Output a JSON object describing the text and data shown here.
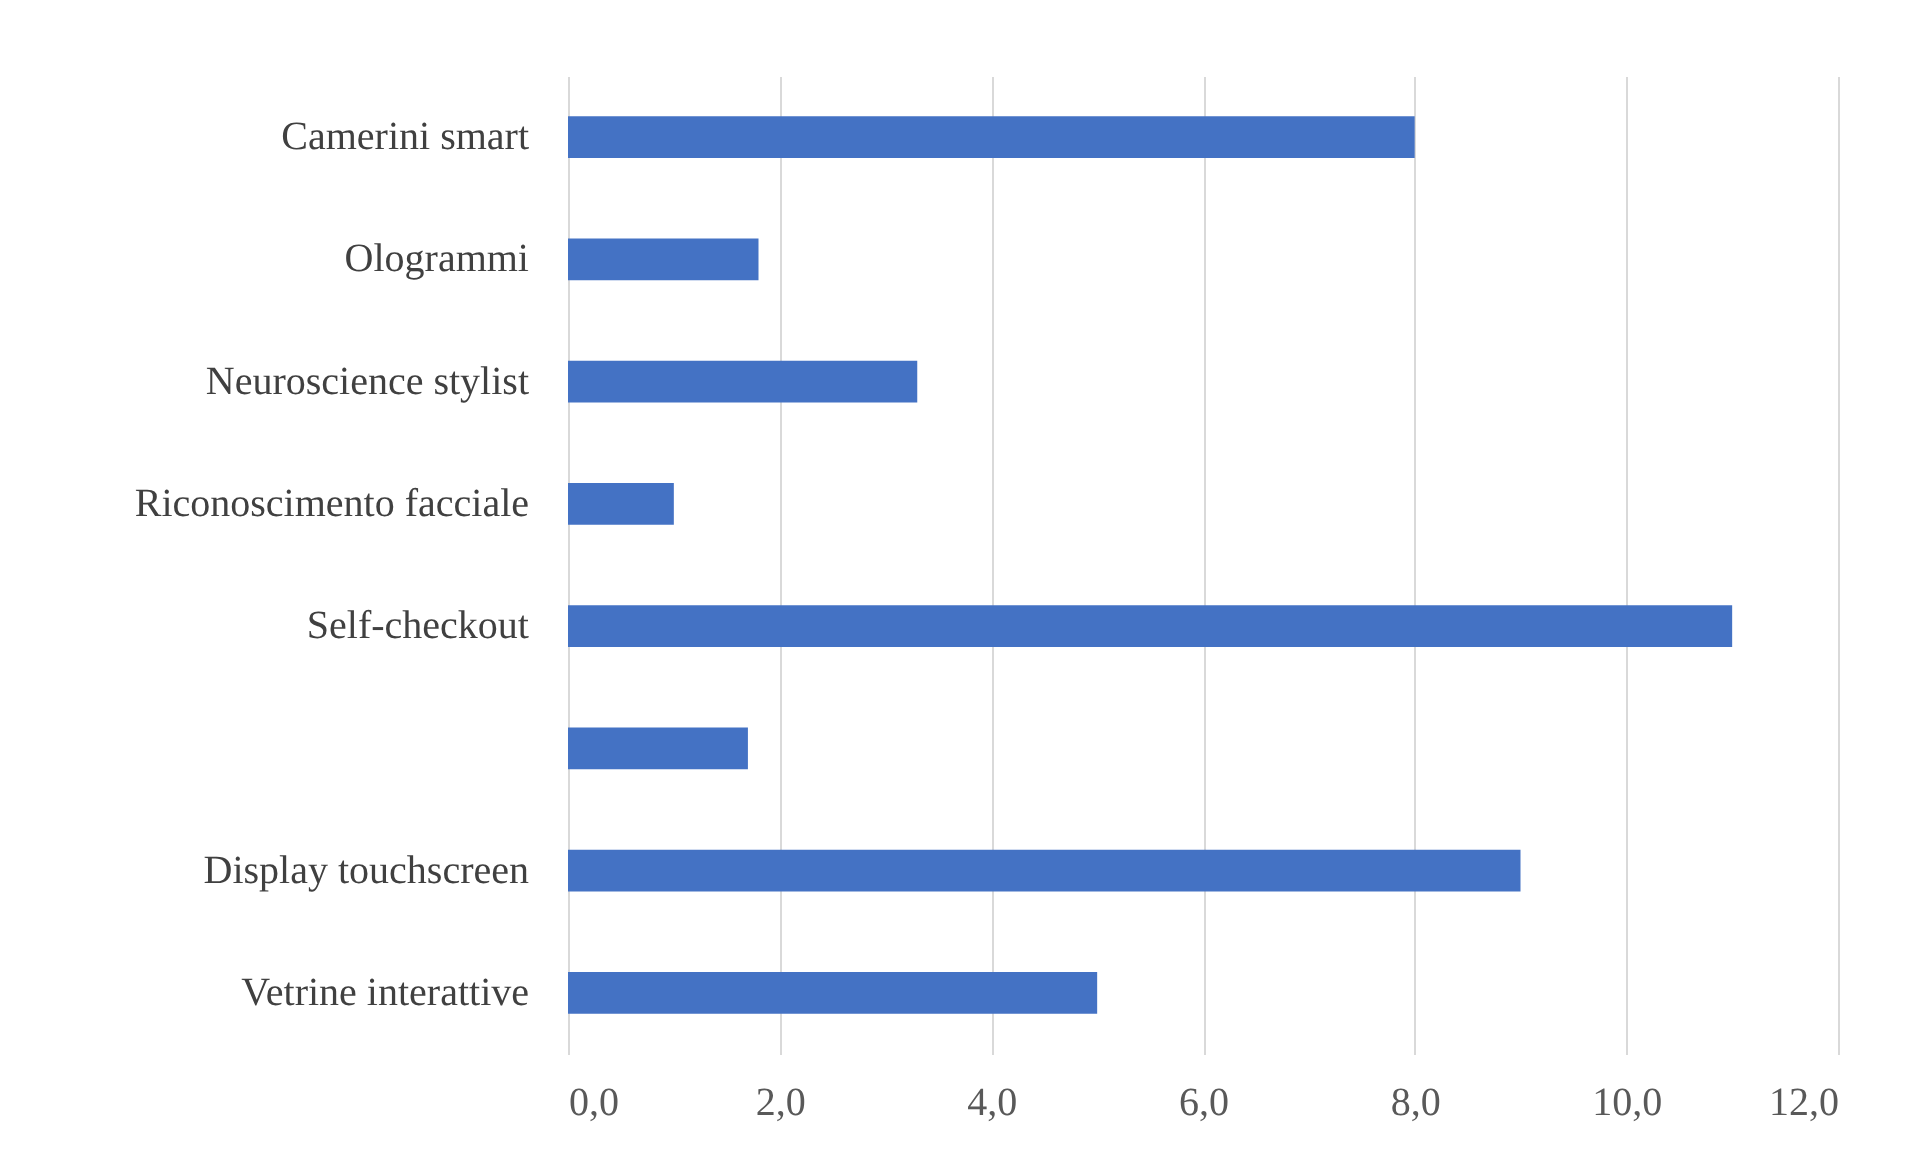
{
  "chart_data": {
    "type": "bar",
    "orientation": "horizontal",
    "categories": [
      "Camerini smart",
      "Ologrammi",
      "Neuroscience stylist",
      "Riconoscimento facciale",
      "Self-checkout",
      null,
      "Display touchscreen",
      "Vetrine interattive"
    ],
    "values": [
      8.0,
      1.8,
      3.3,
      1.0,
      11.0,
      1.7,
      9.0,
      5.0
    ],
    "color": "#4472c4",
    "xlim": [
      0,
      12
    ],
    "xticks": [
      {
        "value": 0,
        "label": "0,0"
      },
      {
        "value": 2,
        "label": "2,0"
      },
      {
        "value": 4,
        "label": "4,0"
      },
      {
        "value": 6,
        "label": "6,0"
      },
      {
        "value": 8,
        "label": "8,0"
      },
      {
        "value": 10,
        "label": "10,0"
      },
      {
        "value": 12,
        "label": "12,0"
      }
    ],
    "grid": "x"
  }
}
